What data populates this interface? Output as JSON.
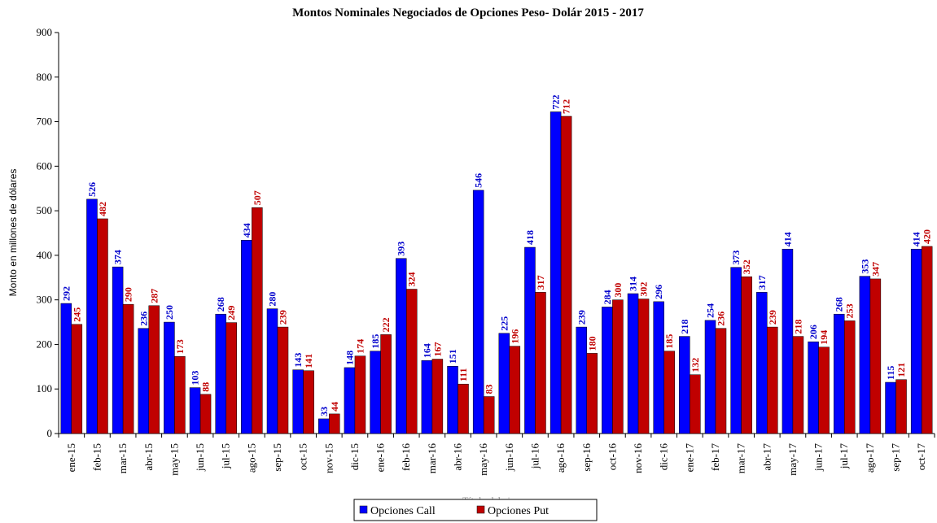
{
  "chart_data": {
    "type": "bar",
    "title": "Montos Nominales Negociados de Opciones Peso- Dolár  2015 - 2017",
    "y_label": "Monto en millones de dólares",
    "x_label": "Título del eje",
    "categories": [
      "ene-15",
      "feb-15",
      "mar-15",
      "abr-15",
      "may-15",
      "jun-15",
      "jul-15",
      "ago-15",
      "sep-15",
      "oct-15",
      "nov-15",
      "dic-15",
      "ene-16",
      "feb-16",
      "mar-16",
      "abr-16",
      "may-16",
      "jun-16",
      "jul-16",
      "ago-16",
      "sep-16",
      "oct-16",
      "nov-16",
      "dic-16",
      "ene-17",
      "feb-17",
      "mar-17",
      "abr-17",
      "may-17",
      "jun-17",
      "jul-17",
      "ago-17",
      "sep-17",
      "oct-17"
    ],
    "series": [
      {
        "name": "Opciones Call",
        "color": "#0000ff",
        "label_color": "#0000cc",
        "values": [
          292,
          526,
          374,
          236,
          250,
          103,
          268,
          434,
          280,
          143,
          33,
          148,
          185,
          393,
          164,
          151,
          546,
          225,
          418,
          722,
          239,
          284,
          314,
          296,
          218,
          254,
          373,
          317,
          414,
          206,
          268,
          353,
          115,
          414
        ]
      },
      {
        "name": "Opciones Put",
        "color": "#c00000",
        "label_color": "#c00000",
        "values": [
          245,
          482,
          290,
          287,
          173,
          88,
          249,
          507,
          239,
          141,
          44,
          174,
          222,
          324,
          167,
          111,
          83,
          196,
          317,
          712,
          180,
          300,
          302,
          185,
          132,
          236,
          352,
          239,
          218,
          194,
          253,
          347,
          121,
          420
        ]
      }
    ],
    "ylim": [
      0,
      900
    ],
    "yticks": [
      0,
      100,
      200,
      300,
      400,
      500,
      600,
      700,
      800,
      900
    ],
    "legend": "bottom"
  }
}
